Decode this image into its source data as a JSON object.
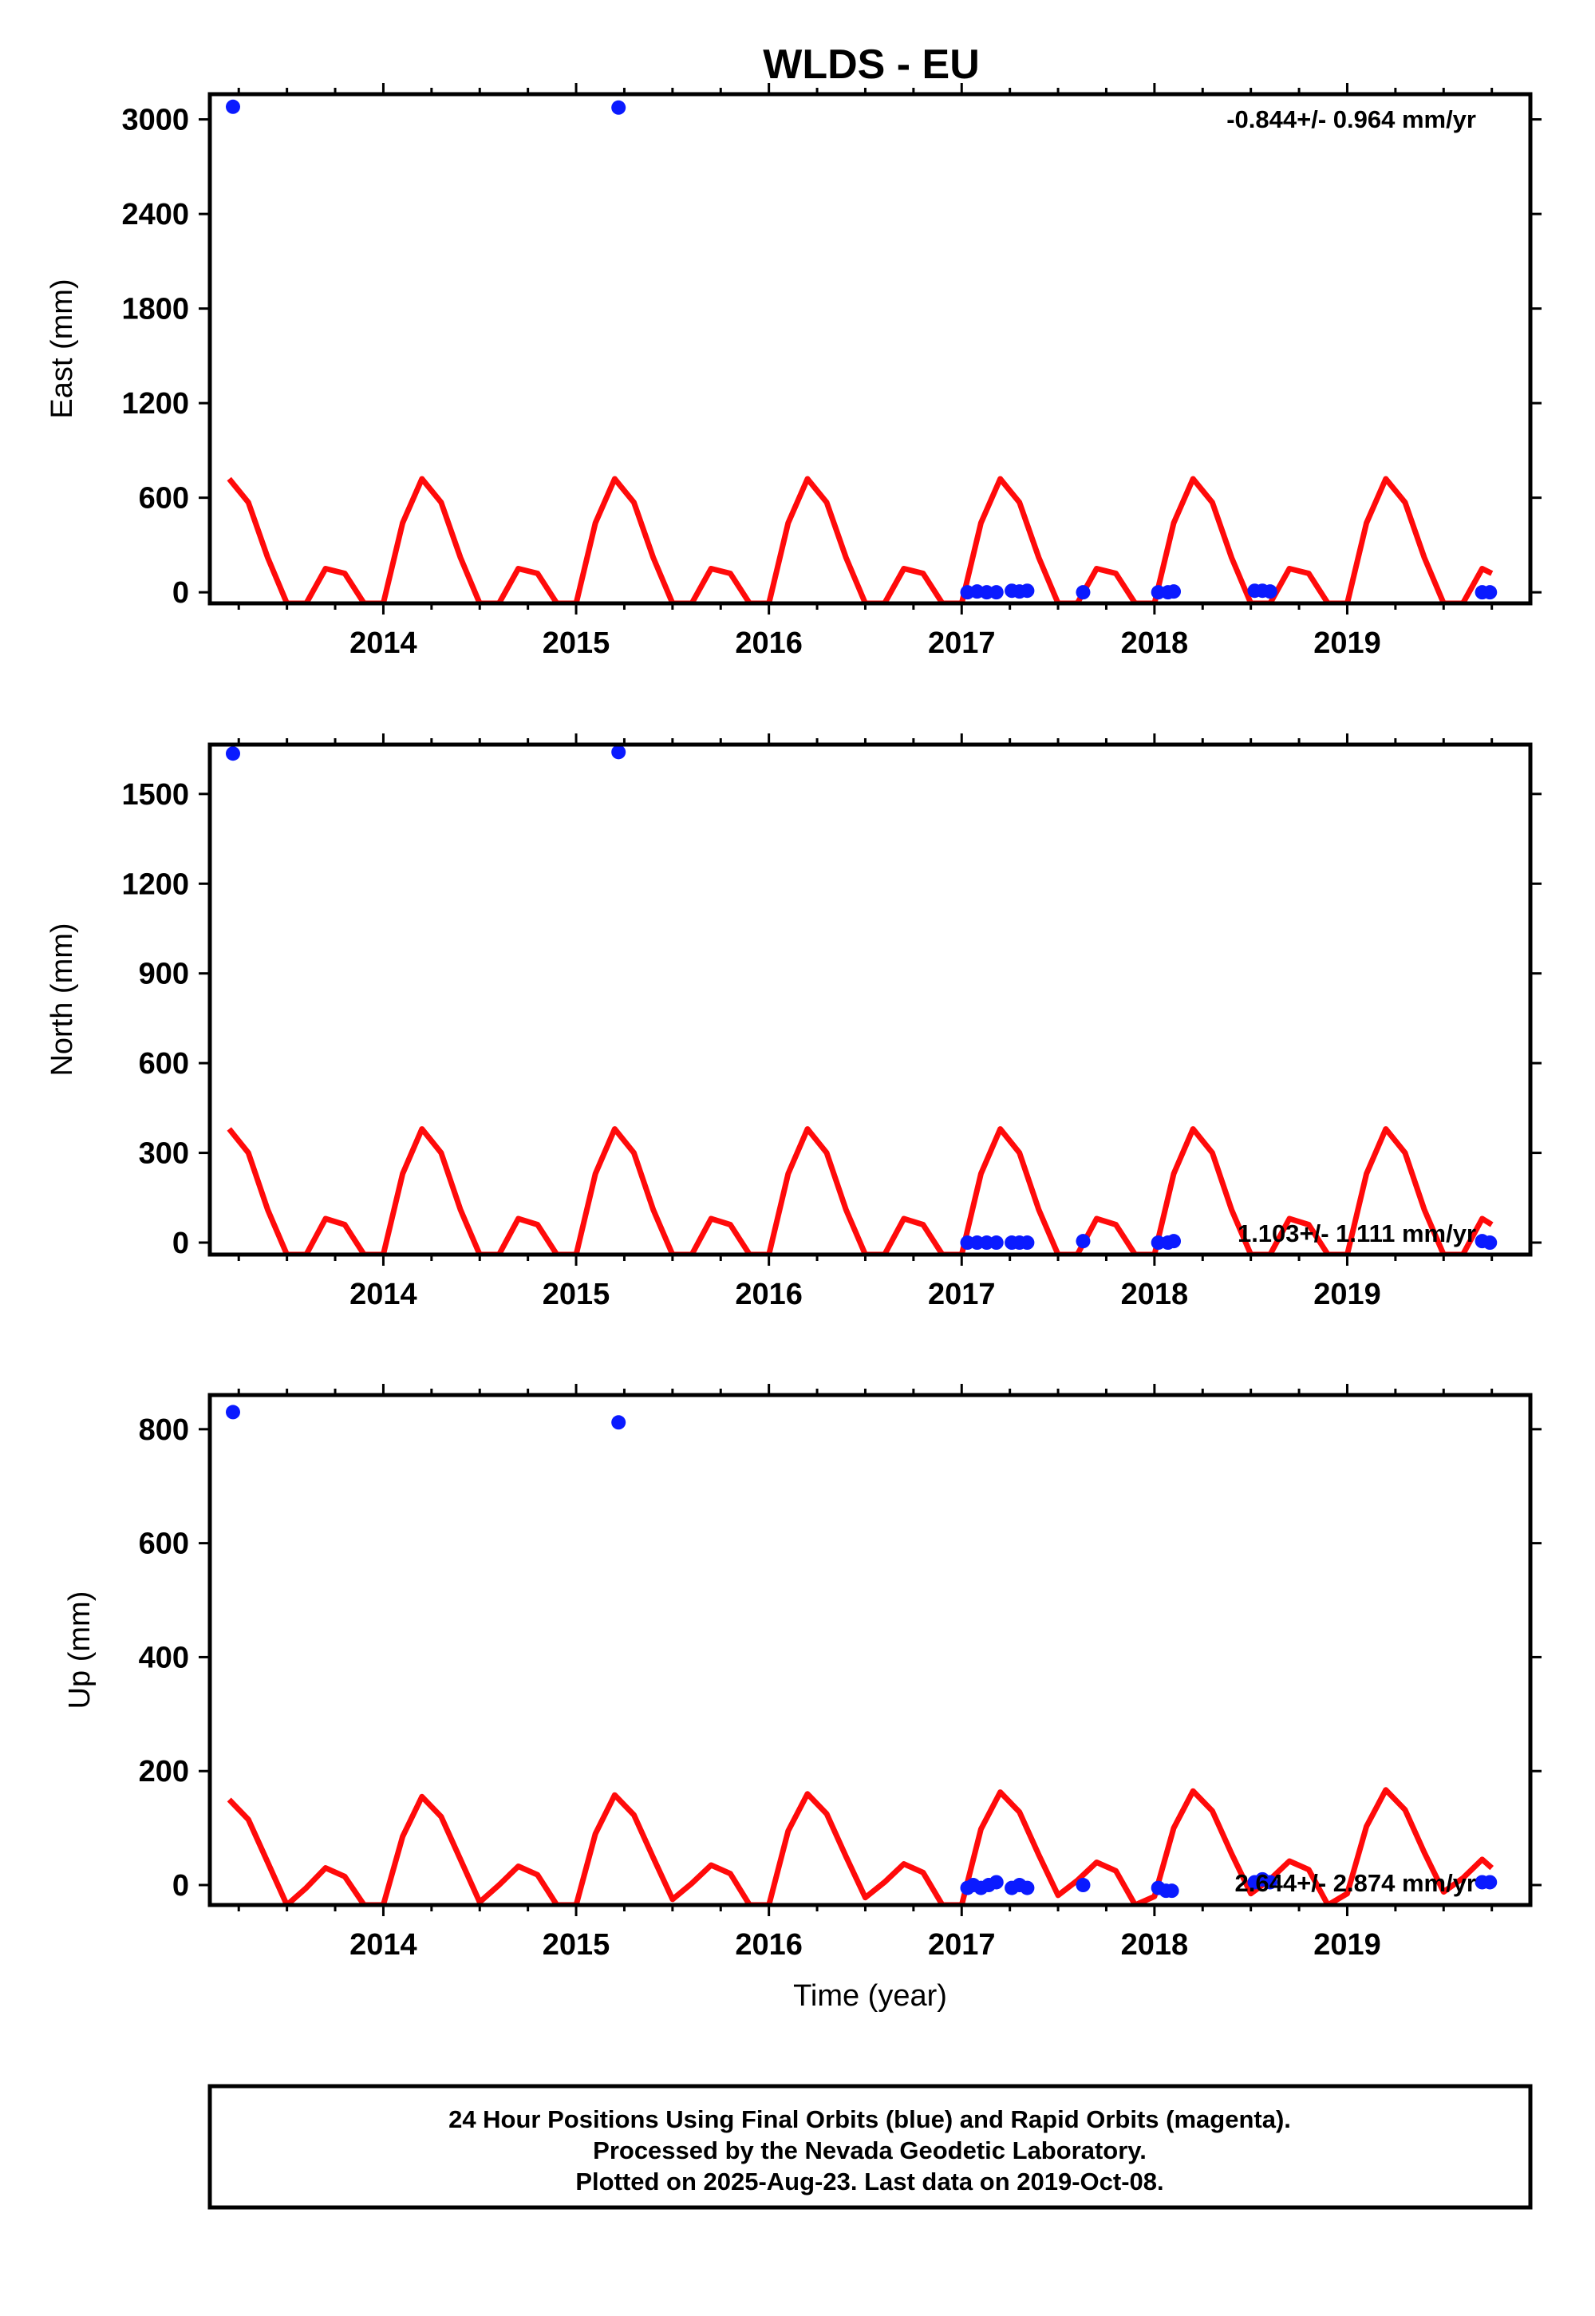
{
  "title": "WLDS - EU",
  "colors": {
    "data": "#0a1aff",
    "model": "#ff0a0a",
    "frame": "#000000"
  },
  "chart_data": [
    {
      "type": "scatter",
      "name": "east",
      "ylabel": "East (mm)",
      "xlabel": "",
      "xlim": [
        2013.1,
        2019.95
      ],
      "ylim": [
        -70,
        3160
      ],
      "xticks": [
        "2014",
        "2015",
        "2016",
        "2017",
        "2018",
        "2019"
      ],
      "xtick_values": [
        2014,
        2015,
        2016,
        2017,
        2018,
        2019
      ],
      "yticks": [
        "0",
        "600",
        "1200",
        "1800",
        "2400",
        "3000"
      ],
      "ytick_values": [
        0,
        600,
        1200,
        1800,
        2400,
        3000
      ],
      "rate": "-0.844+/- 0.964 mm/yr",
      "model": {
        "type": "line",
        "x": [
          2013.2,
          2013.3,
          2013.4,
          2013.5,
          2013.6,
          2013.7,
          2013.8,
          2013.9,
          2014.0,
          2014.1,
          2014.2,
          2014.3,
          2014.4,
          2014.5,
          2014.6,
          2014.7,
          2014.8,
          2014.9,
          2015.0,
          2015.1,
          2015.2,
          2015.3,
          2015.4,
          2015.5,
          2015.6,
          2015.7,
          2015.8,
          2015.9,
          2016.0,
          2016.1,
          2016.2,
          2016.3,
          2016.4,
          2016.5,
          2016.6,
          2016.7,
          2016.8,
          2016.9,
          2017.0,
          2017.1,
          2017.2,
          2017.3,
          2017.4,
          2017.5,
          2017.6,
          2017.7,
          2017.8,
          2017.9,
          2018.0,
          2018.1,
          2018.2,
          2018.3,
          2018.4,
          2018.5,
          2018.6,
          2018.7,
          2018.8,
          2018.9,
          2019.0,
          2019.1,
          2019.2,
          2019.3,
          2019.4,
          2019.5,
          2019.6,
          2019.7,
          2019.75
        ],
        "y": [
          720,
          570,
          220,
          -70,
          -70,
          150,
          120,
          -70,
          -70,
          440,
          720,
          570,
          220,
          -70,
          -70,
          150,
          120,
          -70,
          -70,
          440,
          720,
          570,
          220,
          -70,
          -70,
          150,
          120,
          -70,
          -70,
          440,
          720,
          570,
          220,
          -70,
          -70,
          150,
          120,
          -70,
          -70,
          440,
          720,
          570,
          220,
          -70,
          -70,
          150,
          120,
          -70,
          -70,
          440,
          720,
          570,
          220,
          -70,
          -70,
          150,
          120,
          -70,
          -70,
          440,
          720,
          570,
          220,
          -70,
          -70,
          150,
          120
        ]
      },
      "points": {
        "x": [
          2013.22,
          2015.22,
          2017.03,
          2017.08,
          2017.13,
          2017.18,
          2017.26,
          2017.3,
          2017.34,
          2017.63,
          2018.02,
          2018.07,
          2018.1,
          2018.52,
          2018.56,
          2018.6,
          2019.7,
          2019.74
        ],
        "y": [
          3080,
          3075,
          0,
          5,
          0,
          0,
          10,
          5,
          10,
          0,
          0,
          0,
          5,
          10,
          10,
          5,
          0,
          0
        ]
      }
    },
    {
      "type": "scatter",
      "name": "north",
      "ylabel": "North (mm)",
      "xlabel": "",
      "xlim": [
        2013.1,
        2019.95
      ],
      "ylim": [
        -40,
        1665
      ],
      "xticks": [
        "2014",
        "2015",
        "2016",
        "2017",
        "2018",
        "2019"
      ],
      "xtick_values": [
        2014,
        2015,
        2016,
        2017,
        2018,
        2019
      ],
      "yticks": [
        "0",
        "300",
        "600",
        "900",
        "1200",
        "1500"
      ],
      "ytick_values": [
        0,
        300,
        600,
        900,
        1200,
        1500
      ],
      "rate": "1.103+/- 1.111 mm/yr",
      "model": {
        "type": "line",
        "x": [
          2013.2,
          2013.3,
          2013.4,
          2013.5,
          2013.6,
          2013.7,
          2013.8,
          2013.9,
          2014.0,
          2014.1,
          2014.2,
          2014.3,
          2014.4,
          2014.5,
          2014.6,
          2014.7,
          2014.8,
          2014.9,
          2015.0,
          2015.1,
          2015.2,
          2015.3,
          2015.4,
          2015.5,
          2015.6,
          2015.7,
          2015.8,
          2015.9,
          2016.0,
          2016.1,
          2016.2,
          2016.3,
          2016.4,
          2016.5,
          2016.6,
          2016.7,
          2016.8,
          2016.9,
          2017.0,
          2017.1,
          2017.2,
          2017.3,
          2017.4,
          2017.5,
          2017.6,
          2017.7,
          2017.8,
          2017.9,
          2018.0,
          2018.1,
          2018.2,
          2018.3,
          2018.4,
          2018.5,
          2018.6,
          2018.7,
          2018.8,
          2018.9,
          2019.0,
          2019.1,
          2019.2,
          2019.3,
          2019.4,
          2019.5,
          2019.6,
          2019.7,
          2019.75
        ],
        "y": [
          380,
          300,
          110,
          -40,
          -40,
          80,
          60,
          -40,
          -40,
          230,
          380,
          300,
          110,
          -40,
          -40,
          80,
          60,
          -40,
          -40,
          230,
          380,
          300,
          110,
          -40,
          -40,
          80,
          60,
          -40,
          -40,
          230,
          380,
          300,
          110,
          -40,
          -40,
          80,
          60,
          -40,
          -40,
          230,
          380,
          300,
          110,
          -40,
          -40,
          80,
          60,
          -40,
          -40,
          230,
          380,
          300,
          110,
          -40,
          -40,
          80,
          60,
          -40,
          -40,
          230,
          380,
          300,
          110,
          -40,
          -40,
          80,
          60
        ]
      },
      "points": {
        "x": [
          2013.22,
          2015.22,
          2017.03,
          2017.08,
          2017.13,
          2017.18,
          2017.26,
          2017.3,
          2017.34,
          2017.63,
          2018.02,
          2018.07,
          2018.1,
          2019.7,
          2019.74
        ],
        "y": [
          1635,
          1640,
          0,
          0,
          0,
          0,
          0,
          0,
          0,
          5,
          0,
          0,
          5,
          5,
          0
        ]
      }
    },
    {
      "type": "scatter",
      "name": "up",
      "ylabel": "Up (mm)",
      "xlabel": "Time (year)",
      "xlim": [
        2013.1,
        2019.95
      ],
      "ylim": [
        -35,
        860
      ],
      "xticks": [
        "2014",
        "2015",
        "2016",
        "2017",
        "2018",
        "2019"
      ],
      "xtick_values": [
        2014,
        2015,
        2016,
        2017,
        2018,
        2019
      ],
      "yticks": [
        "0",
        "200",
        "400",
        "600",
        "800"
      ],
      "ytick_values": [
        0,
        200,
        400,
        600,
        800
      ],
      "rate": "2.644+/- 2.874 mm/yr",
      "model": {
        "type": "line",
        "x": [
          2013.2,
          2013.3,
          2013.4,
          2013.5,
          2013.6,
          2013.7,
          2013.8,
          2013.9,
          2014.0,
          2014.1,
          2014.2,
          2014.3,
          2014.4,
          2014.5,
          2014.6,
          2014.7,
          2014.8,
          2014.9,
          2015.0,
          2015.1,
          2015.2,
          2015.3,
          2015.4,
          2015.5,
          2015.6,
          2015.7,
          2015.8,
          2015.9,
          2016.0,
          2016.1,
          2016.2,
          2016.3,
          2016.4,
          2016.5,
          2016.6,
          2016.7,
          2016.8,
          2016.9,
          2017.0,
          2017.1,
          2017.2,
          2017.3,
          2017.4,
          2017.5,
          2017.6,
          2017.7,
          2017.8,
          2017.9,
          2018.0,
          2018.1,
          2018.2,
          2018.3,
          2018.4,
          2018.5,
          2018.6,
          2018.7,
          2018.8,
          2018.9,
          2019.0,
          2019.1,
          2019.2,
          2019.3,
          2019.4,
          2019.5,
          2019.6,
          2019.7,
          2019.75
        ],
        "y": [
          150,
          115,
          40,
          -35,
          -5,
          30,
          15,
          -35,
          -35,
          85,
          155,
          120,
          45,
          -30,
          0,
          33,
          18,
          -35,
          -35,
          90,
          158,
          123,
          48,
          -25,
          3,
          35,
          20,
          -35,
          -35,
          95,
          160,
          125,
          50,
          -22,
          5,
          37,
          22,
          -35,
          -35,
          98,
          163,
          128,
          53,
          -18,
          8,
          40,
          25,
          -35,
          -20,
          100,
          165,
          130,
          55,
          -15,
          10,
          42,
          27,
          -35,
          -15,
          103,
          167,
          132,
          57,
          -12,
          12,
          45,
          30
        ]
      },
      "points": {
        "x": [
          2013.22,
          2015.22,
          2017.03,
          2017.06,
          2017.1,
          2017.14,
          2017.18,
          2017.26,
          2017.3,
          2017.34,
          2017.63,
          2018.02,
          2018.06,
          2018.09,
          2018.52,
          2018.56,
          2018.6,
          2019.7,
          2019.74
        ],
        "y": [
          830,
          812,
          -5,
          0,
          -5,
          0,
          5,
          -5,
          0,
          -5,
          0,
          -5,
          -10,
          -10,
          5,
          10,
          5,
          5,
          5
        ]
      }
    }
  ],
  "footer": {
    "line1": "24 Hour Positions Using Final Orbits (blue) and Rapid Orbits (magenta).",
    "line2": "Processed by the Nevada Geodetic Laboratory.",
    "line3": "Plotted on 2025-Aug-23. Last data on 2019-Oct-08."
  }
}
